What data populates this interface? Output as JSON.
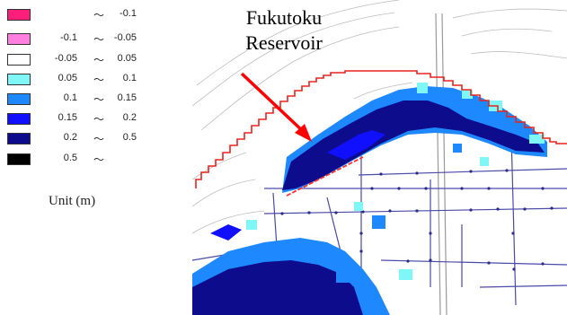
{
  "legend": {
    "rows": [
      {
        "color": "#ff1f7a",
        "low": "",
        "high": "-0.1"
      },
      {
        "color": "#ff7fe0",
        "low": "-0.1",
        "high": "-0.05"
      },
      {
        "color": "#ffffff",
        "low": "-0.05",
        "high": "0.05"
      },
      {
        "color": "#7ff7f7",
        "low": "0.05",
        "high": "0.1"
      },
      {
        "color": "#1e88ff",
        "low": "0.1",
        "high": "0.15"
      },
      {
        "color": "#1010ff",
        "low": "0.15",
        "high": "0.2"
      },
      {
        "color": "#0c0c8c",
        "low": "0.2",
        "high": "0.5"
      },
      {
        "color": "#000000",
        "low": "0.5",
        "high": ""
      }
    ],
    "tilde": "～",
    "unit": "Unit (m)"
  },
  "map": {
    "label": [
      "Fukutoku",
      "Reservoir"
    ],
    "boundary_color": "#e8241e",
    "arrow_color": "#ff0000"
  }
}
